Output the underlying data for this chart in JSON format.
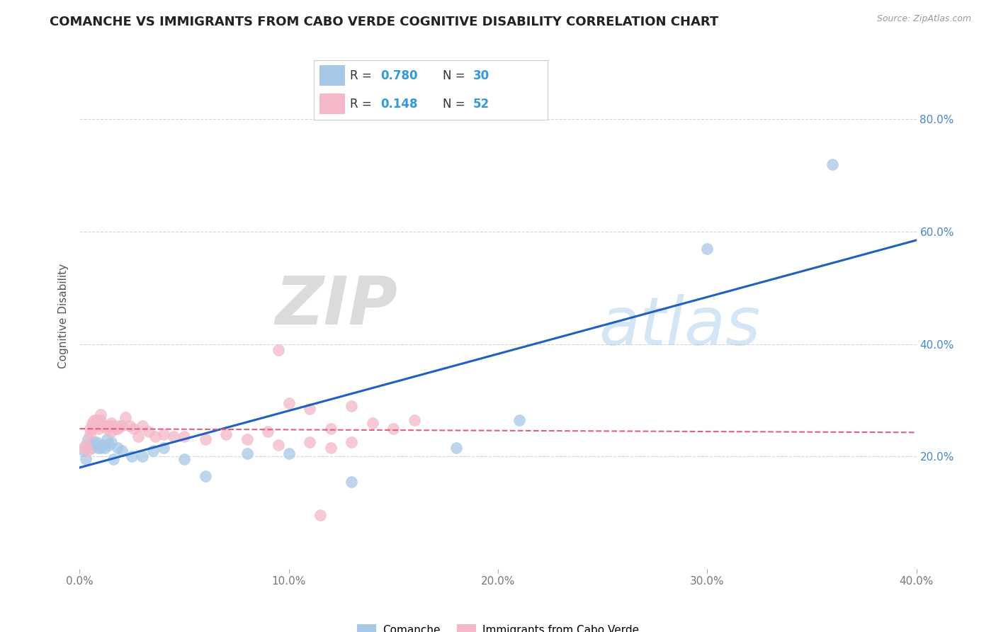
{
  "title": "COMANCHE VS IMMIGRANTS FROM CABO VERDE COGNITIVE DISABILITY CORRELATION CHART",
  "source": "Source: ZipAtlas.com",
  "ylabel": "Cognitive Disability",
  "xlim": [
    0.0,
    0.4
  ],
  "ylim": [
    0.0,
    0.9
  ],
  "xticks": [
    0.0,
    0.1,
    0.2,
    0.3,
    0.4
  ],
  "yticks": [
    0.2,
    0.4,
    0.6,
    0.8
  ],
  "xticklabels": [
    "0.0%",
    "10.0%",
    "20.0%",
    "30.0%",
    "40.0%"
  ],
  "yticklabels_right": [
    "20.0%",
    "40.0%",
    "60.0%",
    "80.0%"
  ],
  "watermark_zip": "ZIP",
  "watermark_atlas": "atlas",
  "series1_name": "Comanche",
  "series2_name": "Immigrants from Cabo Verde",
  "series1_color": "#a8c8e8",
  "series2_color": "#f4b8c8",
  "series1_line_color": "#2060c0",
  "series2_line_color": "#e06080",
  "background_color": "#ffffff",
  "grid_color": "#cccccc",
  "legend_r1": "0.780",
  "legend_n1": "30",
  "legend_r2": "0.148",
  "legend_n2": "52",
  "comanche_x": [
    0.002,
    0.003,
    0.004,
    0.005,
    0.006,
    0.007,
    0.008,
    0.009,
    0.01,
    0.011,
    0.012,
    0.013,
    0.014,
    0.015,
    0.016,
    0.018,
    0.02,
    0.025,
    0.03,
    0.035,
    0.04,
    0.05,
    0.06,
    0.08,
    0.1,
    0.13,
    0.18,
    0.21,
    0.3,
    0.36
  ],
  "comanche_y": [
    0.21,
    0.195,
    0.23,
    0.22,
    0.215,
    0.225,
    0.225,
    0.215,
    0.215,
    0.22,
    0.215,
    0.23,
    0.22,
    0.225,
    0.195,
    0.215,
    0.21,
    0.2,
    0.2,
    0.21,
    0.215,
    0.195,
    0.165,
    0.205,
    0.205,
    0.155,
    0.215,
    0.265,
    0.57,
    0.72
  ],
  "cabo_verde_x": [
    0.002,
    0.003,
    0.004,
    0.005,
    0.005,
    0.006,
    0.006,
    0.007,
    0.007,
    0.008,
    0.008,
    0.009,
    0.01,
    0.01,
    0.011,
    0.012,
    0.013,
    0.014,
    0.015,
    0.015,
    0.016,
    0.017,
    0.018,
    0.019,
    0.02,
    0.022,
    0.024,
    0.026,
    0.028,
    0.03,
    0.033,
    0.036,
    0.04,
    0.045,
    0.05,
    0.06,
    0.07,
    0.08,
    0.09,
    0.1,
    0.11,
    0.12,
    0.13,
    0.14,
    0.15,
    0.16,
    0.13,
    0.11,
    0.095,
    0.12,
    0.095,
    0.115
  ],
  "cabo_verde_y": [
    0.215,
    0.22,
    0.21,
    0.25,
    0.24,
    0.25,
    0.26,
    0.255,
    0.265,
    0.255,
    0.265,
    0.25,
    0.265,
    0.275,
    0.255,
    0.255,
    0.25,
    0.255,
    0.26,
    0.245,
    0.255,
    0.25,
    0.25,
    0.255,
    0.255,
    0.27,
    0.255,
    0.25,
    0.235,
    0.255,
    0.245,
    0.235,
    0.24,
    0.235,
    0.235,
    0.23,
    0.24,
    0.23,
    0.245,
    0.295,
    0.285,
    0.25,
    0.29,
    0.26,
    0.25,
    0.265,
    0.225,
    0.225,
    0.39,
    0.215,
    0.22,
    0.095
  ]
}
